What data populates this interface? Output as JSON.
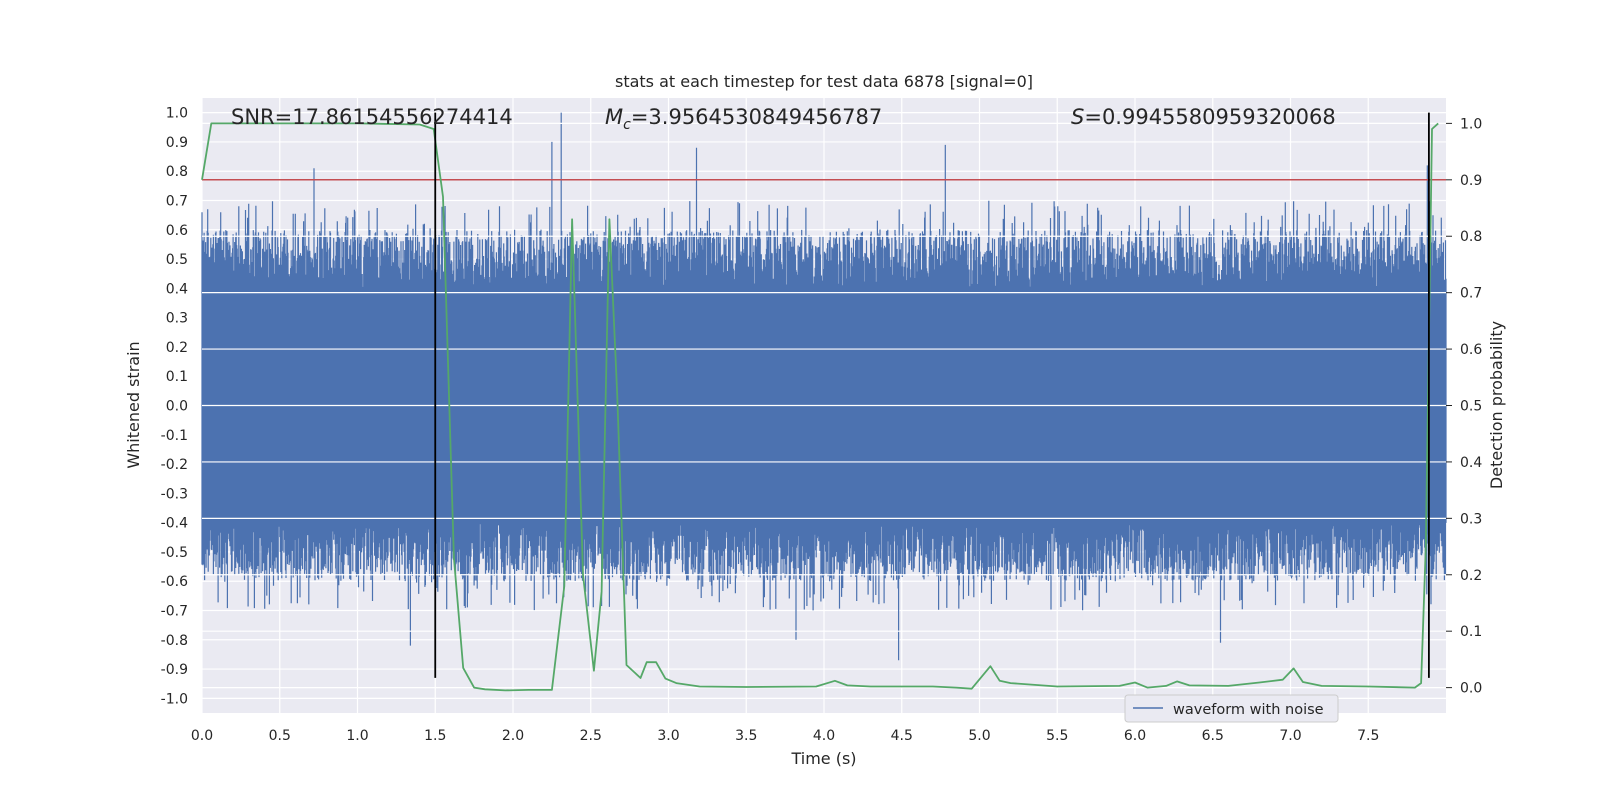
{
  "chart_data": {
    "type": "line",
    "title": "stats at each timestep for test data 6878 [signal=0]",
    "xlabel": "Time (s)",
    "ylabel": "Whitened strain",
    "y2label": "Detection probability",
    "xlim": [
      0.0,
      8.0
    ],
    "ylim": [
      -1.05,
      1.05
    ],
    "y2lim": [
      -0.045,
      1.045
    ],
    "xticks": [
      "0.0",
      "0.5",
      "1.0",
      "1.5",
      "2.0",
      "2.5",
      "3.0",
      "3.5",
      "4.0",
      "4.5",
      "5.0",
      "5.5",
      "6.0",
      "6.5",
      "7.0",
      "7.5"
    ],
    "yticks": [
      "1.0",
      "0.9",
      "0.8",
      "0.7",
      "0.6",
      "0.5",
      "0.4",
      "0.3",
      "0.2",
      "0.1",
      "0.0",
      "-0.1",
      "-0.2",
      "-0.3",
      "-0.4",
      "-0.5",
      "-0.6",
      "-0.7",
      "-0.8",
      "-0.9",
      "-1.0"
    ],
    "y2ticks": [
      "1.0",
      "0.9",
      "0.8",
      "0.7",
      "0.6",
      "0.5",
      "0.4",
      "0.3",
      "0.2",
      "0.1",
      "0.0"
    ],
    "grid": true,
    "legend_position": "lower-right",
    "annotations": {
      "snr": "SNR=17.86154556274414",
      "mc_symbol": "M",
      "mc_sub": "c",
      "mc_value": "=3.9564530849456787",
      "s_symbol": "S",
      "s_value": "=0.9945580959320068"
    },
    "series": [
      {
        "name": "waveform with noise",
        "kind": "noisy-waveform",
        "axis": "left",
        "color": "#4c72b0",
        "envelope": {
          "core": 0.4,
          "typical_peak": 0.6,
          "max": 1.0,
          "min": -0.83
        },
        "prominent_peaks": [
          {
            "x": 0.72,
            "y": 0.81
          },
          {
            "x": 1.34,
            "y": -0.82
          },
          {
            "x": 2.25,
            "y": 0.9
          },
          {
            "x": 2.31,
            "y": 1.0
          },
          {
            "x": 3.18,
            "y": 0.88
          },
          {
            "x": 3.82,
            "y": -0.8
          },
          {
            "x": 4.48,
            "y": -0.87
          },
          {
            "x": 4.78,
            "y": 0.89
          },
          {
            "x": 6.55,
            "y": -0.81
          },
          {
            "x": 7.88,
            "y": 0.82
          }
        ]
      },
      {
        "name": "",
        "axis": "right",
        "color": "#55a868",
        "x": [
          0.0,
          0.06,
          0.5,
          1.0,
          1.4,
          1.49,
          1.55,
          1.62,
          1.68,
          1.75,
          1.82,
          1.95,
          2.1,
          2.25,
          2.33,
          2.38,
          2.45,
          2.52,
          2.57,
          2.62,
          2.67,
          2.73,
          2.82,
          2.86,
          2.92,
          2.98,
          3.05,
          3.2,
          3.5,
          3.95,
          4.07,
          4.15,
          4.3,
          4.7,
          4.85,
          4.95,
          5.07,
          5.13,
          5.2,
          5.5,
          5.9,
          6.0,
          6.08,
          6.2,
          6.27,
          6.35,
          6.6,
          6.8,
          6.95,
          7.02,
          7.08,
          7.2,
          7.5,
          7.8,
          7.84,
          7.87,
          7.91,
          7.95
        ],
        "y": [
          0.9,
          1.0,
          1.0,
          1.0,
          0.998,
          0.99,
          0.87,
          0.23,
          0.035,
          0.0,
          -0.003,
          -0.005,
          -0.004,
          -0.004,
          0.18,
          0.83,
          0.2,
          0.03,
          0.17,
          0.83,
          0.52,
          0.04,
          0.017,
          0.045,
          0.045,
          0.016,
          0.008,
          0.002,
          0.001,
          0.002,
          0.012,
          0.004,
          0.002,
          0.002,
          0.0,
          -0.002,
          0.038,
          0.012,
          0.008,
          0.002,
          0.003,
          0.009,
          0.0,
          0.003,
          0.011,
          0.004,
          0.003,
          0.009,
          0.014,
          0.034,
          0.01,
          0.003,
          0.002,
          0.0,
          0.008,
          0.25,
          0.99,
          1.0
        ]
      }
    ],
    "hlines": [
      {
        "axis": "right",
        "y": 0.9,
        "color": "#c44e52"
      }
    ],
    "vlines": [
      {
        "x": 1.5,
        "ymin": -0.93,
        "ymax": 1.0,
        "color": "#000000"
      },
      {
        "x": 7.89,
        "ymin": -0.93,
        "ymax": 1.0,
        "color": "#000000"
      }
    ]
  }
}
